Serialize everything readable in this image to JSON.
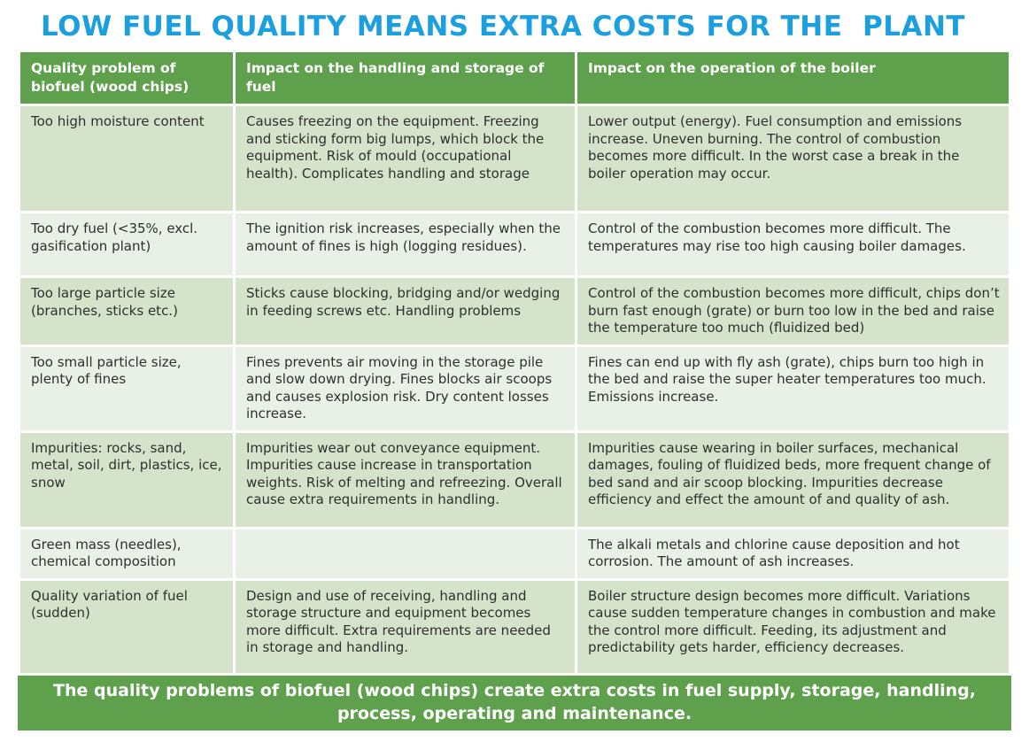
{
  "title": "LOW FUEL QUALITY MEANS EXTRA COSTS FOR THE  PLANT",
  "colors": {
    "title_blue": "#1c9fde",
    "header_green": "#5fa04d",
    "row_dark_green": "#d6e3cb",
    "row_light_green": "#e9f0e5",
    "footer_green": "#5fa04d",
    "header_text": "#ffffff",
    "cell_text": "#2f2f2f"
  },
  "table": {
    "headers": [
      "Quality problem of biofuel (wood chips)",
      "Impact on the handling and storage of fuel",
      "Impact on the operation of the boiler"
    ],
    "rows": [
      {
        "problem": "Too high moisture content",
        "handling": "Causes freezing on the equipment. Freezing and sticking  form big lumps, which block the equipment. Risk of mould (occupational health). Complicates handling and storage",
        "boiler": "Lower output (energy). Fuel consumption and emissions increase. Uneven burning. The control of combustion becomes more difficult. In the worst case a break in the boiler operation may occur."
      },
      {
        "problem": "Too dry fuel (<35%, excl. gasification plant)",
        "handling": "The ignition risk increases, especially when the amount of fines is high (logging residues).",
        "boiler": "Control of the combustion becomes more difficult. The temperatures may rise too high causing boiler damages."
      },
      {
        "problem": "Too large particle size (branches, sticks etc.)",
        "handling": "Sticks cause blocking, bridging and/or wedging in   feeding screws etc. Handling problems",
        "boiler": "Control of the combustion becomes more difficult, chips don’t burn fast enough (grate) or  burn too low in the bed and raise the temperature too much (fluidized bed)"
      },
      {
        "problem": "Too small particle size, plenty of fines",
        "handling": "Fines prevents air moving in the storage pile and  slow down drying. Fines blocks air scoops and causes explosion risk. Dry content losses increase.",
        "boiler": "Fines can end up with fly ash (grate), chips burn too high in the bed and raise the super heater temperatures too much. Emissions increase."
      },
      {
        "problem": "Impurities: rocks, sand, metal, soil, dirt, plastics, ice, snow",
        "handling": "Impurities wear out conveyance equipment. Impurities cause increase in transportation weights. Risk of melting and refreezing. Overall cause extra requirements in handling.",
        "boiler": "Impurities cause wearing in boiler surfaces, mechanical damages, fouling of fluidized beds, more frequent change of bed sand and air scoop blocking. Impurities decrease efficiency and effect  the amount of  and quality of ash."
      },
      {
        "problem": "Green mass (needles), chemical composition",
        "handling": "",
        "boiler": "The alkali metals and chlorine  cause deposition and hot corrosion. The amount of ash increases."
      },
      {
        "problem": "Quality variation of fuel (sudden)",
        "handling": "Design and use of receiving, handling and storage structure and equipment becomes more difficult. Extra requirements are needed in storage and handling.",
        "boiler": "Boiler structure design becomes more difficult. Variations cause sudden temperature changes in combustion  and make the control more difficult. Feeding, its adjustment and predictability gets harder, efficiency decreases."
      }
    ]
  },
  "footer": "The quality problems of biofuel (wood chips)  create extra costs in fuel supply, storage, handling, process, operating and maintenance."
}
